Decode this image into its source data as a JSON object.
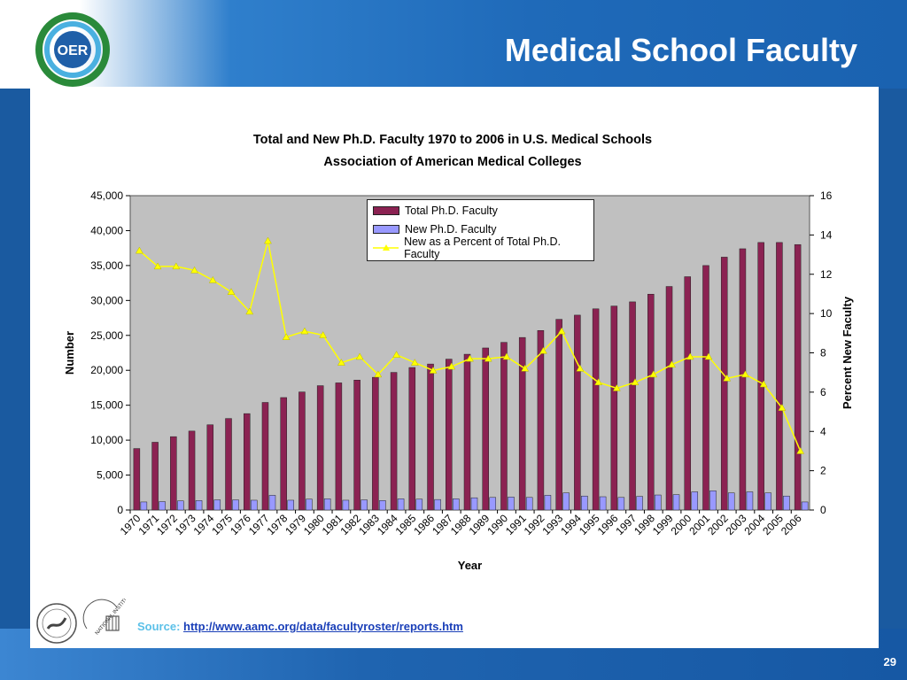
{
  "slide": {
    "title": "Medical School Faculty",
    "page_number": "29",
    "logo_text": "OER",
    "source_label": "Source:",
    "source_link": "http://www.aamc.org/data/facultyroster/reports.htm",
    "nih_seal_text": "NATIONAL INSTITUTES OF HEALTH"
  },
  "colors": {
    "bar_total": "#8b2252",
    "bar_new": "#9999ff",
    "line_percent": "#ffff00",
    "plot_bg": "#c0c0c0",
    "header_blue": "#1a62b0"
  },
  "chart_data": {
    "type": "bar",
    "title": "Total and New Ph.D. Faculty 1970 to 2006 in U.S. Medical Schools",
    "subtitle": "Association of American Medical Colleges",
    "xlabel": "Year",
    "ylabel": "Number",
    "y2label": "Percent New Faculty",
    "ylim": [
      0,
      45000
    ],
    "y2lim": [
      0,
      16
    ],
    "yticks": [
      "0",
      "5,000",
      "10,000",
      "15,000",
      "20,000",
      "25,000",
      "30,000",
      "35,000",
      "40,000",
      "45,000"
    ],
    "y2ticks": [
      "0",
      "2",
      "4",
      "6",
      "8",
      "10",
      "12",
      "14",
      "16"
    ],
    "grid": false,
    "legend_position": "top-center",
    "categories": [
      "1970",
      "1971",
      "1972",
      "1973",
      "1974",
      "1975",
      "1976",
      "1977",
      "1978",
      "1979",
      "1980",
      "1981",
      "1982",
      "1983",
      "1984",
      "1985",
      "1986",
      "1987",
      "1988",
      "1989",
      "1990",
      "1991",
      "1992",
      "1993",
      "1994",
      "1995",
      "1996",
      "1997",
      "1998",
      "1999",
      "2000",
      "2001",
      "2002",
      "2003",
      "2004",
      "2005",
      "2006"
    ],
    "series": [
      {
        "name": "Total Ph.D. Faculty",
        "kind": "bar",
        "axis": "left",
        "values": [
          8800,
          9700,
          10500,
          11300,
          12200,
          13100,
          13800,
          15400,
          16100,
          16900,
          17800,
          18200,
          18600,
          19000,
          19700,
          20400,
          20900,
          21600,
          22300,
          23200,
          24000,
          24700,
          25700,
          27300,
          27900,
          28800,
          29200,
          29800,
          30900,
          32000,
          33400,
          35000,
          36200,
          37400,
          38300,
          38300,
          38000
        ]
      },
      {
        "name": "New Ph.D. Faculty",
        "kind": "bar",
        "axis": "left",
        "values": [
          1150,
          1200,
          1300,
          1350,
          1450,
          1450,
          1400,
          2100,
          1400,
          1550,
          1600,
          1400,
          1450,
          1350,
          1600,
          1550,
          1500,
          1600,
          1750,
          1800,
          1850,
          1800,
          2100,
          2450,
          2000,
          1900,
          1800,
          1950,
          2150,
          2200,
          2600,
          2750,
          2450,
          2600,
          2450,
          2000,
          1150
        ]
      },
      {
        "name": "New as a Percent of Total Ph.D. Faculty",
        "kind": "line",
        "axis": "right",
        "values": [
          13.2,
          12.4,
          12.4,
          12.2,
          11.7,
          11.1,
          10.1,
          13.7,
          8.8,
          9.1,
          8.9,
          7.5,
          7.8,
          6.9,
          7.9,
          7.5,
          7.1,
          7.3,
          7.7,
          7.7,
          7.8,
          7.2,
          8.1,
          9.1,
          7.2,
          6.5,
          6.2,
          6.5,
          6.9,
          7.4,
          7.8,
          7.8,
          6.7,
          6.9,
          6.4,
          5.2,
          3.0
        ]
      }
    ]
  }
}
